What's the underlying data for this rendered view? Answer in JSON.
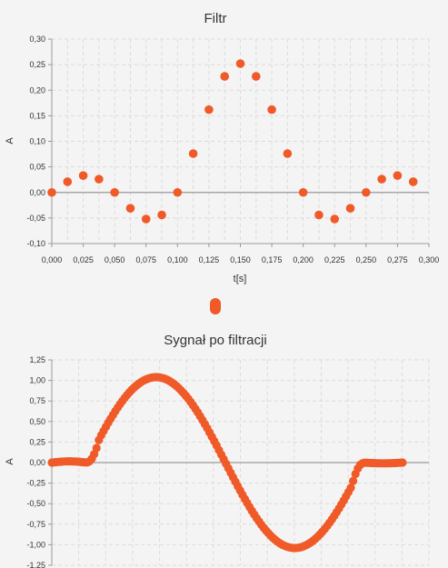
{
  "chart_data": [
    {
      "type": "scatter",
      "title": "Filtr",
      "xlabel": "t[s]",
      "ylabel": "A",
      "xlim": [
        0,
        0.3
      ],
      "ylim": [
        -0.1,
        0.3
      ],
      "grid": true,
      "x_ticks": [
        "0,000",
        "0,025",
        "0,050",
        "0,075",
        "0,100",
        "0,125",
        "0,150",
        "0,175",
        "0,200",
        "0,225",
        "0,250",
        "0,275",
        "0,300"
      ],
      "y_ticks": [
        "0,30",
        "0,25",
        "0,20",
        "0,15",
        "0,10",
        "0,05",
        "0,00",
        "-0,05",
        "-0,10"
      ],
      "legend": {
        "placement": "bottom",
        "color": "#f05a28"
      },
      "series": [
        {
          "color": "#f05a28",
          "points": [
            [
              0.0,
              0.0
            ],
            [
              0.0125,
              0.021
            ],
            [
              0.025,
              0.033
            ],
            [
              0.0375,
              0.026
            ],
            [
              0.05,
              0.0
            ],
            [
              0.0625,
              -0.031
            ],
            [
              0.075,
              -0.052
            ],
            [
              0.0875,
              -0.044
            ],
            [
              0.1,
              0.0
            ],
            [
              0.1125,
              0.076
            ],
            [
              0.125,
              0.162
            ],
            [
              0.1375,
              0.227
            ],
            [
              0.15,
              0.252
            ],
            [
              0.1625,
              0.227
            ],
            [
              0.175,
              0.162
            ],
            [
              0.1875,
              0.076
            ],
            [
              0.2,
              0.0
            ],
            [
              0.2125,
              -0.044
            ],
            [
              0.225,
              -0.052
            ],
            [
              0.2375,
              -0.031
            ],
            [
              0.25,
              0.0
            ],
            [
              0.2625,
              0.026
            ],
            [
              0.275,
              0.033
            ],
            [
              0.2875,
              0.021
            ]
          ]
        }
      ]
    },
    {
      "type": "scatter",
      "title": "Sygnał po filtracji",
      "xlabel": "",
      "ylabel": "A",
      "ylim": [
        -1.25,
        1.25
      ],
      "grid": true,
      "y_ticks": [
        "1,25",
        "1,00",
        "0,75",
        "0,50",
        "0,25",
        "0,00",
        "-0,25",
        "-0,50",
        "-0,75",
        "-1,00",
        "-1,25"
      ],
      "series": [
        {
          "color": "#f05a28",
          "description_of_shape": "",
          "generator": {
            "start": 0.0,
            "end": 1.0,
            "count": 150,
            "flat_start": 0.1,
            "flat_end": 0.89,
            "period": 0.79,
            "amplitude": 1.04,
            "ripple": 0.015
          }
        }
      ]
    }
  ]
}
